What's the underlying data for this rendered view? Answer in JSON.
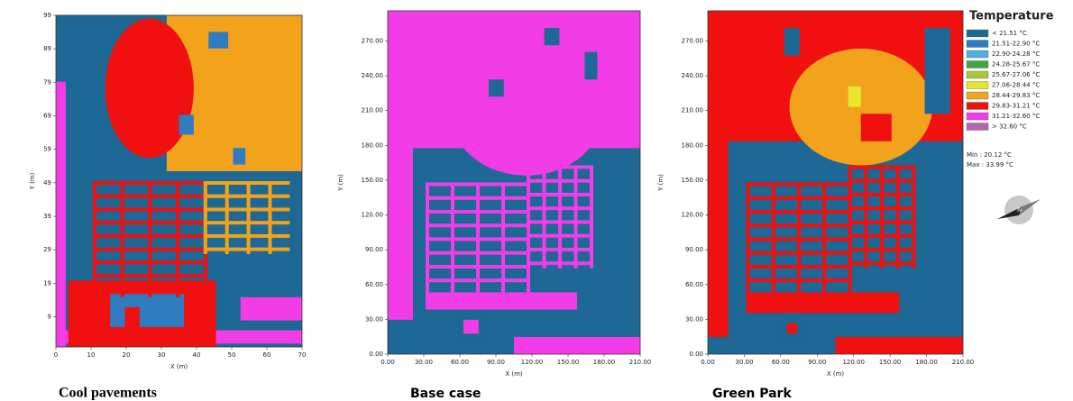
{
  "chart_data": [
    {
      "type": "heatmap",
      "title": "Cool pavements",
      "xlabel": "X (m)",
      "ylabel": "Y (m)",
      "xlim": [
        0,
        70
      ],
      "ylim": [
        0,
        99
      ],
      "xticks": [
        0,
        10,
        20,
        30,
        40,
        50,
        60,
        70
      ],
      "yticks": [
        9,
        19,
        29,
        39,
        49,
        59,
        69,
        79,
        89,
        99
      ]
    },
    {
      "type": "heatmap",
      "title": "Base case",
      "xlabel": "X (m)",
      "ylabel": "Y (m)",
      "xlim": [
        0,
        210
      ],
      "ylim": [
        0,
        296
      ],
      "xticks": [
        {
          "value": 0,
          "label": "0.00"
        },
        {
          "value": 30,
          "label": "30.00"
        },
        {
          "value": 60,
          "label": "60.00"
        },
        {
          "value": 90,
          "label": "90.00"
        },
        {
          "value": 120,
          "label": "120.00"
        },
        {
          "value": 150,
          "label": "150.00"
        },
        {
          "value": 180,
          "label": "180.00"
        },
        {
          "value": 210,
          "label": "210.00"
        }
      ],
      "yticks": [
        {
          "value": 0,
          "label": "0.00"
        },
        {
          "value": 30,
          "label": "30.00"
        },
        {
          "value": 60,
          "label": "60.00"
        },
        {
          "value": 90,
          "label": "90.00"
        },
        {
          "value": 120,
          "label": "120.00"
        },
        {
          "value": 150,
          "label": "150.00"
        },
        {
          "value": 180,
          "label": "180.00"
        },
        {
          "value": 210,
          "label": "210.00"
        },
        {
          "value": 240,
          "label": "240.00"
        },
        {
          "value": 270,
          "label": "270.00"
        }
      ]
    },
    {
      "type": "heatmap",
      "title": "Green Park",
      "xlabel": "X (m)",
      "ylabel": "Y (m)",
      "xlim": [
        0,
        210
      ],
      "ylim": [
        0,
        296
      ],
      "xticks": [
        {
          "value": 0,
          "label": "0.00"
        },
        {
          "value": 30,
          "label": "30.00"
        },
        {
          "value": 60,
          "label": "60.00"
        },
        {
          "value": 90,
          "label": "90.00"
        },
        {
          "value": 120,
          "label": "120.00"
        },
        {
          "value": 150,
          "label": "150.00"
        },
        {
          "value": 180,
          "label": "180.00"
        },
        {
          "value": 210,
          "label": "210.00"
        }
      ],
      "yticks": [
        {
          "value": 0,
          "label": "0.00"
        },
        {
          "value": 30,
          "label": "30.00"
        },
        {
          "value": 60,
          "label": "60.00"
        },
        {
          "value": 90,
          "label": "90.00"
        },
        {
          "value": 120,
          "label": "120.00"
        },
        {
          "value": 150,
          "label": "150.00"
        },
        {
          "value": 180,
          "label": "180.00"
        },
        {
          "value": 210,
          "label": "210.00"
        },
        {
          "value": 240,
          "label": "240.00"
        },
        {
          "value": 270,
          "label": "270.00"
        }
      ]
    }
  ],
  "legend": {
    "title": "Temperature",
    "entries": [
      {
        "label": "< 21.51 °C",
        "color": "#1d6894"
      },
      {
        "label": "21.51-22.90 °C",
        "color": "#2f7cc0"
      },
      {
        "label": "22.90-24.28 °C",
        "color": "#4eaee2"
      },
      {
        "label": "24.28-25.67 °C",
        "color": "#3da63d"
      },
      {
        "label": "25.67-27.06 °C",
        "color": "#a8c83c"
      },
      {
        "label": "27.06-28.44 °C",
        "color": "#e6e62c"
      },
      {
        "label": "28.44-29.83 °C",
        "color": "#f3a21c"
      },
      {
        "label": "29.83-31.21 °C",
        "color": "#f01010"
      },
      {
        "label": "31.21-32.60 °C",
        "color": "#f23ce8"
      },
      {
        "label": "> 32.60 °C",
        "color": "#b564b0"
      }
    ],
    "min": "Min : 20.12 °C",
    "max": "Max : 33.99 °C"
  }
}
